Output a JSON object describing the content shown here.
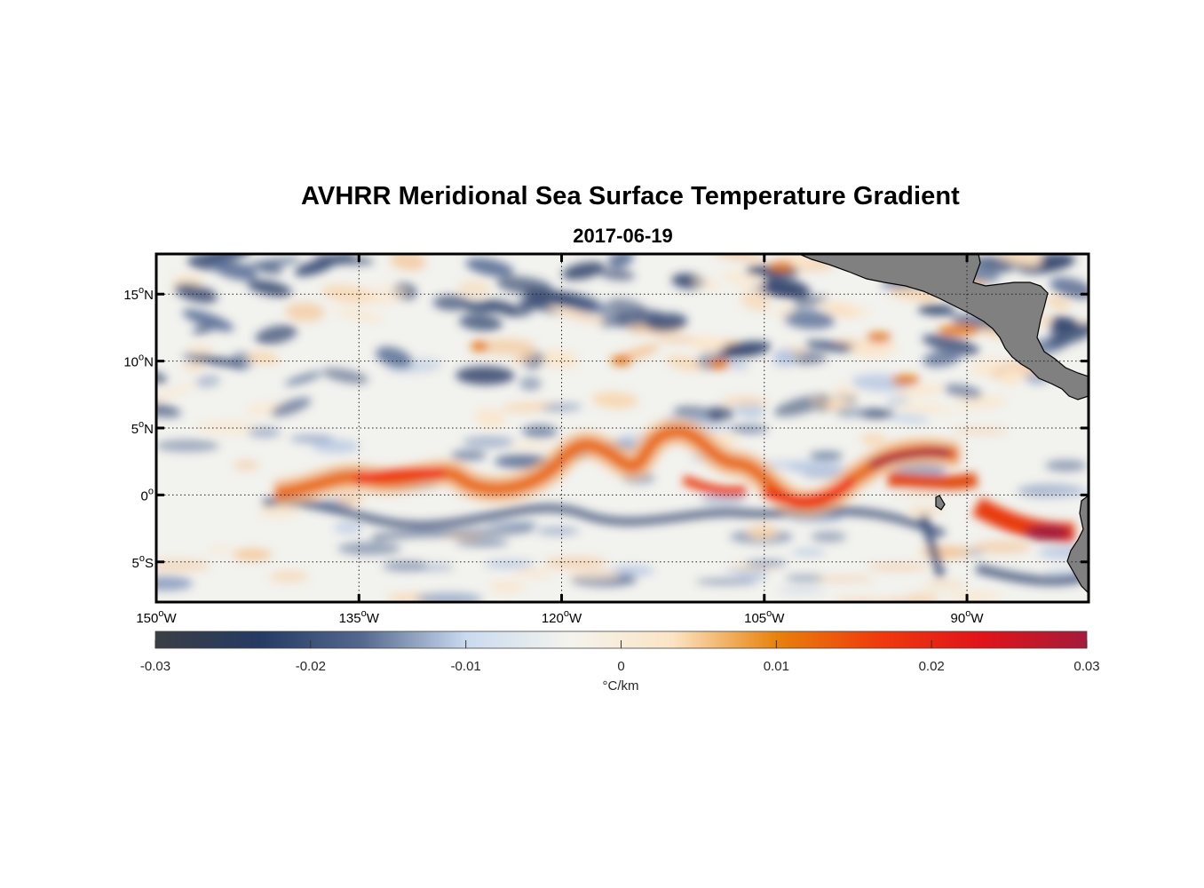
{
  "title": "AVHRR Meridional Sea Surface Temperature Gradient",
  "subtitle": "2017-06-19",
  "map": {
    "lon_range": [
      -150,
      -81
    ],
    "lat_range": [
      -8,
      18
    ],
    "lat_ticks": [
      {
        "value": 15,
        "deg": "15",
        "hemi": "N"
      },
      {
        "value": 10,
        "deg": "10",
        "hemi": "N"
      },
      {
        "value": 5,
        "deg": "5",
        "hemi": "N"
      },
      {
        "value": 0,
        "deg": "0",
        "hemi": ""
      },
      {
        "value": -5,
        "deg": "5",
        "hemi": "S"
      }
    ],
    "lon_ticks": [
      {
        "value": -150,
        "deg": "150",
        "hemi": "W"
      },
      {
        "value": -135,
        "deg": "135",
        "hemi": "W"
      },
      {
        "value": -120,
        "deg": "120",
        "hemi": "W"
      },
      {
        "value": -105,
        "deg": "105",
        "hemi": "W"
      },
      {
        "value": -90,
        "deg": "90",
        "hemi": "W"
      }
    ],
    "land_color": "#808080",
    "grid": "dotted"
  },
  "colorbar": {
    "range": [
      -0.03,
      0.03
    ],
    "tick_labels": [
      "-0.03",
      "-0.02",
      "-0.01",
      "0",
      "0.01",
      "0.02",
      "0.03"
    ],
    "units": "°C/km",
    "colors": [
      "#3b3e44",
      "#253a63",
      "#55698f",
      "#c9daef",
      "#f4f4ee",
      "#fbe4c4",
      "#e8820c",
      "#ef3a0d",
      "#e0131b",
      "#a51b3a"
    ]
  }
}
